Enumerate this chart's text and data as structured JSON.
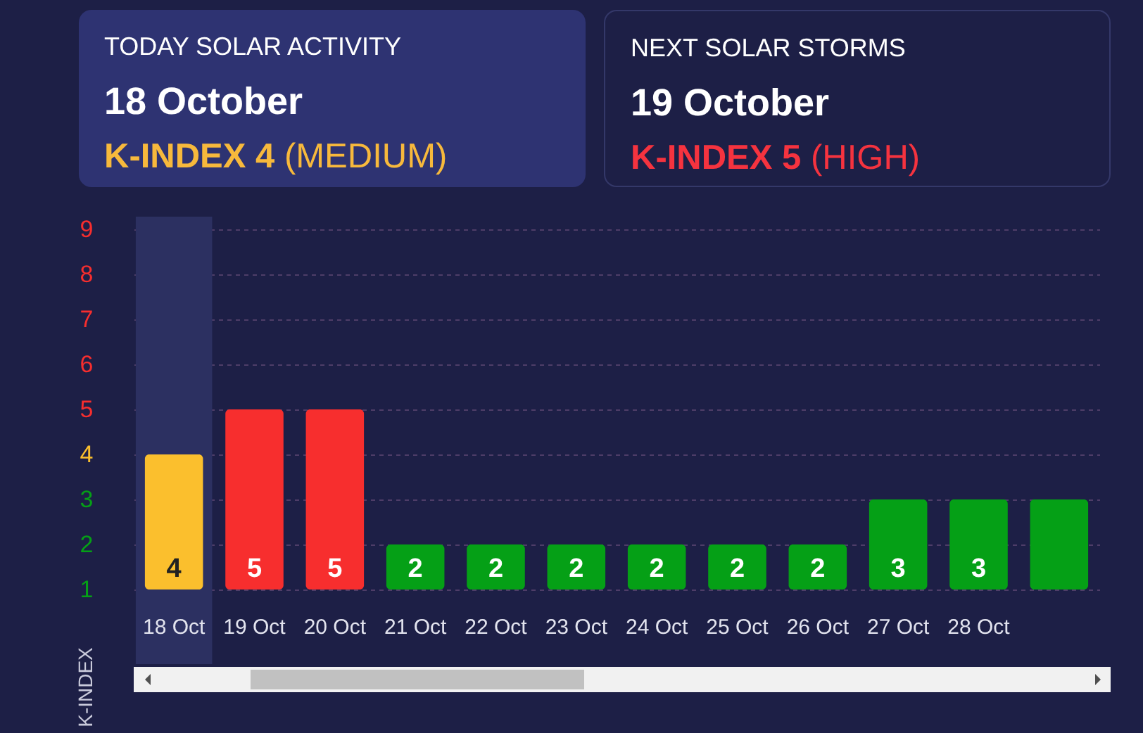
{
  "chart_data": [
    {
      "type": "other",
      "title": "TODAY SOLAR ACTIVITY",
      "subtitle": "18 October",
      "annotations": [
        "K-INDEX 4",
        "(MEDIUM)"
      ],
      "color": "#f7b93c"
    },
    {
      "type": "other",
      "title": "NEXT SOLAR STORMS",
      "subtitle": "19 October",
      "annotations": [
        "K-INDEX 5",
        "(HIGH)"
      ],
      "color": "#f5333f"
    },
    {
      "type": "bar",
      "ylabel": "K-INDEX",
      "categories": [
        "18 Oct",
        "19 Oct",
        "20 Oct",
        "21 Oct",
        "22 Oct",
        "23 Oct",
        "24 Oct",
        "25 Oct",
        "26 Oct",
        "27 Oct",
        "28 Oct",
        null
      ],
      "values": [
        4,
        5,
        5,
        2,
        2,
        2,
        2,
        2,
        2,
        3,
        3,
        3
      ],
      "colors": [
        "#fbbf2d",
        "#f72e2e",
        "#f72e2e",
        "#05a016",
        "#05a016",
        "#05a016",
        "#05a016",
        "#05a016",
        "#05a016",
        "#05a016",
        "#05a016",
        "#05a016"
      ],
      "value_labels": [
        "4",
        "5",
        "5",
        "2",
        "2",
        "2",
        "2",
        "2",
        "2",
        "3",
        "3",
        null
      ],
      "ylim": [
        1,
        9
      ],
      "yticks": [
        1,
        2,
        3,
        4,
        5,
        6,
        7,
        8,
        9
      ],
      "grid": "y",
      "bands": [
        {
          "axis": "x",
          "from": "18 Oct",
          "to": "18 Oct",
          "color": "#2c3061"
        }
      ]
    }
  ]
}
